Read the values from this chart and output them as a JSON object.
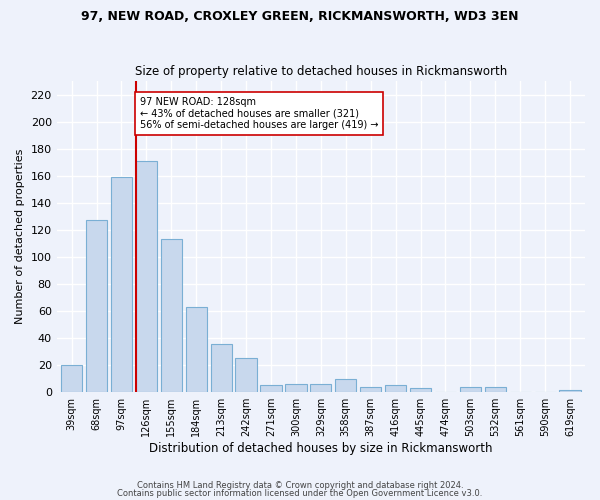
{
  "title1": "97, NEW ROAD, CROXLEY GREEN, RICKMANSWORTH, WD3 3EN",
  "title2": "Size of property relative to detached houses in Rickmansworth",
  "xlabel": "Distribution of detached houses by size in Rickmansworth",
  "ylabel": "Number of detached properties",
  "footer1": "Contains HM Land Registry data © Crown copyright and database right 2024.",
  "footer2": "Contains public sector information licensed under the Open Government Licence v3.0.",
  "categories": [
    "39sqm",
    "68sqm",
    "97sqm",
    "126sqm",
    "155sqm",
    "184sqm",
    "213sqm",
    "242sqm",
    "271sqm",
    "300sqm",
    "329sqm",
    "358sqm",
    "387sqm",
    "416sqm",
    "445sqm",
    "474sqm",
    "503sqm",
    "532sqm",
    "561sqm",
    "590sqm",
    "619sqm"
  ],
  "values": [
    20,
    127,
    159,
    171,
    113,
    63,
    36,
    25,
    5,
    6,
    6,
    10,
    4,
    5,
    3,
    0,
    4,
    4,
    0,
    0,
    2
  ],
  "bar_color": "#c8d8ed",
  "bar_edge_color": "#7aafd4",
  "highlight_bar_index": 3,
  "highlight_label": "97 NEW ROAD: 128sqm",
  "annotation_line1": "← 43% of detached houses are smaller (321)",
  "annotation_line2": "56% of semi-detached houses are larger (419) →",
  "vline_color": "#cc0000",
  "annotation_box_facecolor": "#ffffff",
  "annotation_box_edgecolor": "#cc0000",
  "background_color": "#eef2fb",
  "grid_color": "#ffffff",
  "ylim": [
    0,
    230
  ],
  "yticks": [
    0,
    20,
    40,
    60,
    80,
    100,
    120,
    140,
    160,
    180,
    200,
    220
  ]
}
